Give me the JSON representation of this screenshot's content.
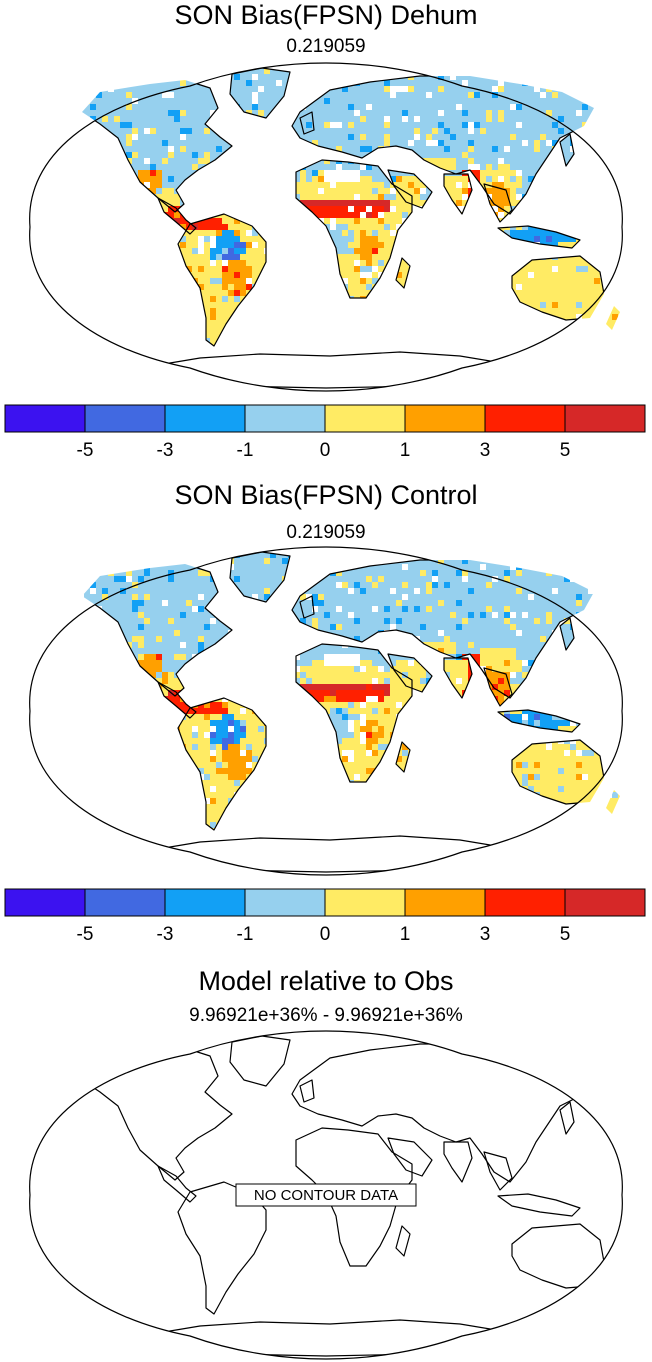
{
  "palette": [
    "#3c12f0",
    "#4169e1",
    "#12a0f5",
    "#96d0ee",
    "#ffeb64",
    "#ffa000",
    "#ff2000",
    "#d62828"
  ],
  "colorbar_labels": [
    "-5",
    "-3",
    "-1",
    "0",
    "1",
    "3",
    "5"
  ],
  "panels": [
    {
      "title": "SON Bias(FPSN) Dehum",
      "subtitle": "0.219059",
      "has_data": true,
      "seed": 11
    },
    {
      "title": "SON Bias(FPSN) Control",
      "subtitle": "0.219059",
      "has_data": true,
      "seed": 37
    },
    {
      "title": "Model relative to Obs",
      "subtitle": "9.96921e+36% - 9.96921e+36%",
      "has_data": false,
      "no_data_label": "NO CONTOUR DATA"
    }
  ],
  "chart_data": {
    "type": "heatmap",
    "projection": "robinson",
    "contour_levels": [
      -5,
      -3,
      -1,
      0,
      1,
      3,
      5
    ],
    "colors": [
      "#3c12f0",
      "#4169e1",
      "#12a0f5",
      "#96d0ee",
      "#ffeb64",
      "#ffa000",
      "#ff2000",
      "#d62828"
    ],
    "panels": [
      {
        "title": "SON Bias(FPSN) Dehum",
        "subtitle": "0.219059"
      },
      {
        "title": "SON Bias(FPSN) Control",
        "subtitle": "0.219059"
      },
      {
        "title": "Model relative to Obs",
        "subtitle": "9.96921e+36% - 9.96921e+36%",
        "annotation": "NO CONTOUR DATA"
      }
    ]
  }
}
